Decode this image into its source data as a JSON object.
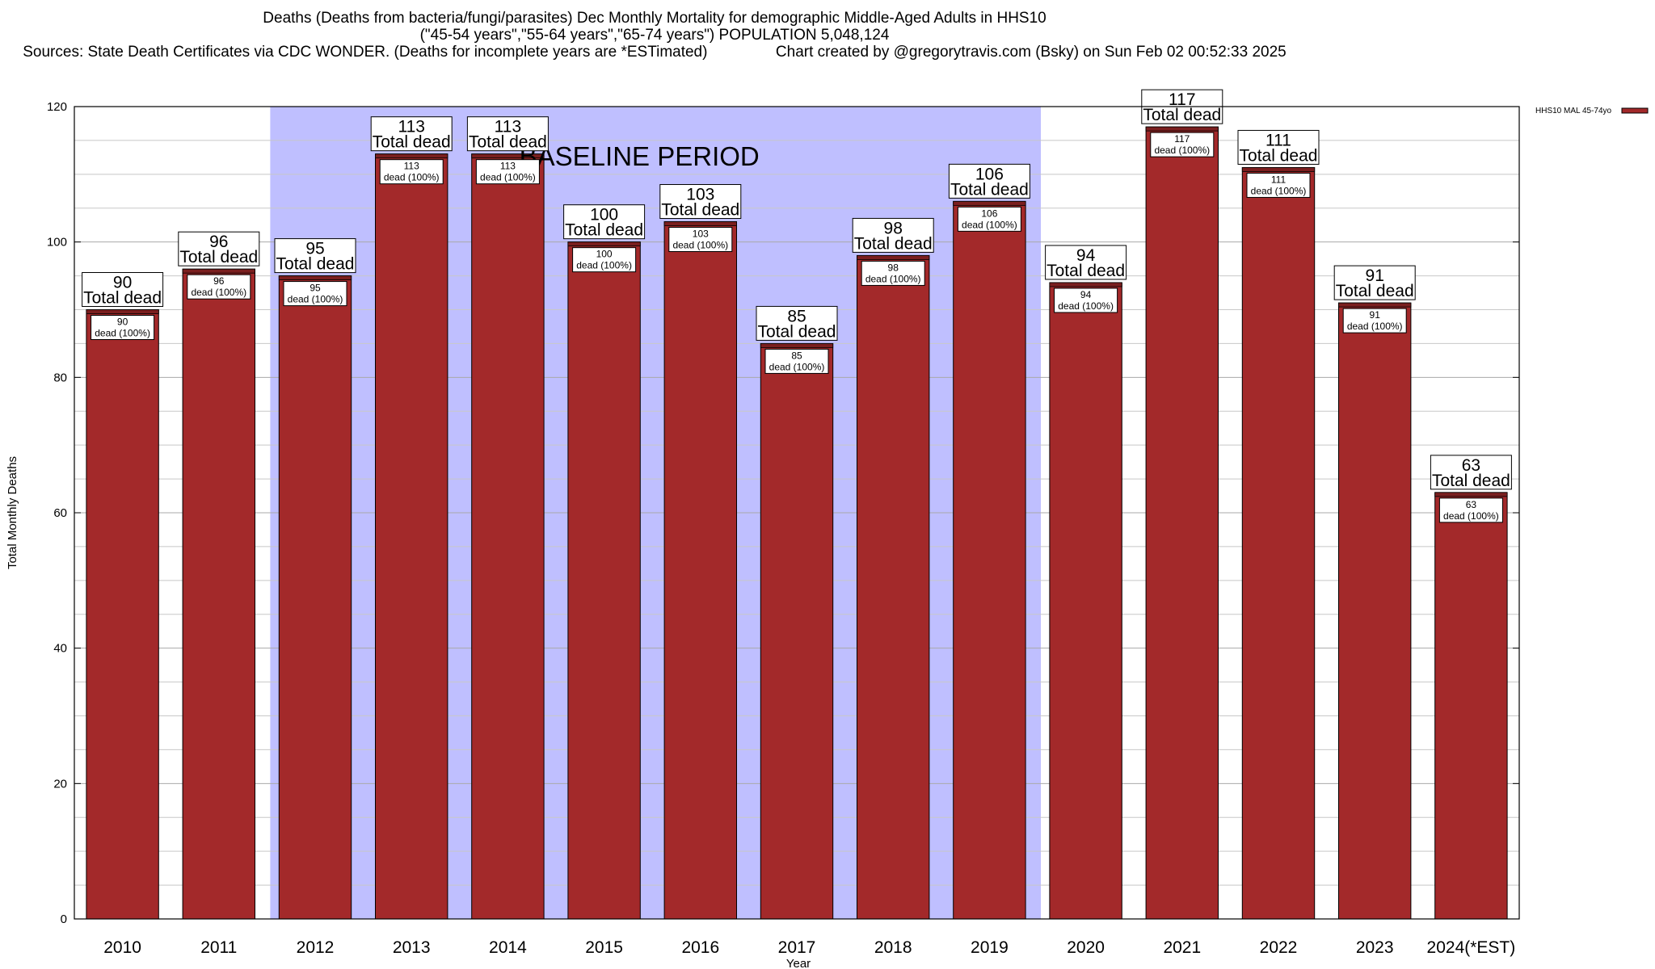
{
  "title": {
    "line1": "Deaths (Deaths from bacteria/fungi/parasites) Dec Monthly Mortality for demographic Middle-Aged Adults in HHS10",
    "line2": "(\"45-54 years\",\"55-64 years\",\"65-74 years\") POPULATION 5,048,124",
    "line3": "Sources: State Death Certificates via CDC WONDER. (Deaths for incomplete years are *ESTimated)                Chart created by @gregorytravis.com (Bsky) on Sun Feb 02 00:52:33 2025"
  },
  "colors": {
    "bar": "#a3292a",
    "bar_top": "#7a1f1f",
    "baseline_band": "#bfbfff",
    "grid": "#c8c8c8"
  },
  "chart_data": {
    "type": "bar",
    "xlabel": "Year",
    "ylabel": "Total Monthly Deaths",
    "ylim": [
      0,
      120
    ],
    "yticks": [
      0,
      20,
      40,
      60,
      80,
      100,
      120
    ],
    "grid": true,
    "legend_position": "top-right",
    "categories": [
      "2010",
      "2011",
      "2012",
      "2013",
      "2014",
      "2015",
      "2016",
      "2017",
      "2018",
      "2019",
      "2020",
      "2021",
      "2022",
      "2023",
      "2024(*EST)"
    ],
    "series": [
      {
        "name": "HHS10 MAL 45-74yo",
        "values": [
          90,
          96,
          95,
          113,
          113,
          100,
          103,
          85,
          98,
          106,
          94,
          117,
          111,
          91,
          63
        ]
      }
    ],
    "total_label": "Total dead",
    "inner_label": "dead (100%)",
    "baseline": {
      "label": "BASELINE PERIOD",
      "from": "2012",
      "to": "2019"
    }
  }
}
